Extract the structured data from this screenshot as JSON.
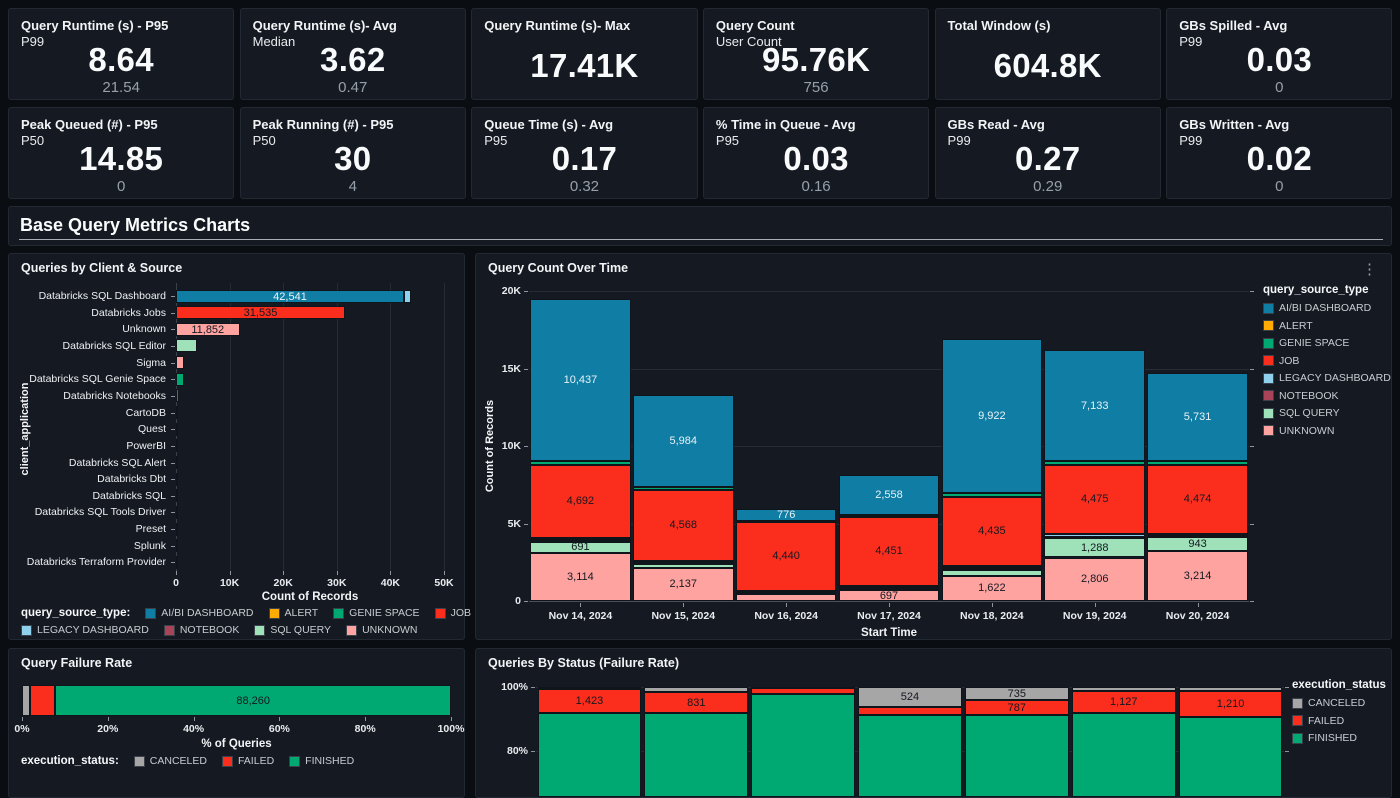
{
  "colors": {
    "background": "#0a0d12",
    "panel": "#151a22",
    "series": {
      "AI/BI DASHBOARD": "#0f7da4",
      "ALERT": "#ffab00",
      "GENIE SPACE": "#00a972",
      "JOB": "#fb2e1d",
      "LEGACY DASHBOARD": "#8fd0ec",
      "NOTEBOOK": "#a94458",
      "SQL QUERY": "#9fe2b9",
      "UNKNOWN": "#ffa3a1"
    },
    "status": {
      "CANCELED": "#a6a6a6",
      "FAILED": "#fb2e1d",
      "FINISHED": "#00a972"
    }
  },
  "kpi_cards": [
    {
      "title": "Query Runtime (s) - P95",
      "subtitle": "P99",
      "value": "8.64",
      "secondary": "21.54"
    },
    {
      "title": "Query Runtime (s)- Avg",
      "subtitle": "Median",
      "value": "3.62",
      "secondary": "0.47"
    },
    {
      "title": "Query Runtime (s)- Max",
      "subtitle": "",
      "value": "17.41K",
      "secondary": ""
    },
    {
      "title": "Query Count",
      "subtitle": "User Count",
      "value": "95.76K",
      "secondary": "756"
    },
    {
      "title": "Total Window (s)",
      "subtitle": "",
      "value": "604.8K",
      "secondary": ""
    },
    {
      "title": "GBs Spilled - Avg",
      "subtitle": "P99",
      "value": "0.03",
      "secondary": "0"
    },
    {
      "title": "Peak Queued (#) - P95",
      "subtitle": "P50",
      "value": "14.85",
      "secondary": "0"
    },
    {
      "title": "Peak Running (#) - P95",
      "subtitle": "P50",
      "value": "30",
      "secondary": "4"
    },
    {
      "title": "Queue Time (s) - Avg",
      "subtitle": "P95",
      "value": "0.17",
      "secondary": "0.32"
    },
    {
      "title": "% Time in Queue - Avg",
      "subtitle": "P95",
      "value": "0.03",
      "secondary": "0.16"
    },
    {
      "title": "GBs Read - Avg",
      "subtitle": "P99",
      "value": "0.27",
      "secondary": "0.29"
    },
    {
      "title": "GBs Written - Avg",
      "subtitle": "P99",
      "value": "0.02",
      "secondary": "0"
    }
  ],
  "section_title": "Base Query Metrics Charts",
  "chart_data": [
    {
      "id": "queries_by_client_source",
      "type": "bar",
      "orientation": "horizontal",
      "title": "Queries by Client & Source",
      "xlabel": "Count of Records",
      "ylabel": "client_application",
      "xlim": [
        0,
        50000
      ],
      "xticks": [
        "0",
        "10K",
        "20K",
        "30K",
        "40K",
        "50K"
      ],
      "grid": true,
      "categories": [
        "Databricks SQL Dashboard",
        "Databricks Jobs",
        "Unknown",
        "Databricks SQL Editor",
        "Sigma",
        "Databricks SQL Genie Space",
        "Databricks Notebooks",
        "CartoDB",
        "Quest",
        "PowerBI",
        "Databricks SQL Alert",
        "Databricks Dbt",
        "Databricks SQL",
        "Databricks SQL Tools Driver",
        "Preset",
        "Splunk",
        "Databricks Terraform Provider"
      ],
      "values": [
        42541,
        31535,
        11852,
        3900,
        1500,
        1450,
        560,
        370,
        90,
        70,
        60,
        50,
        40,
        30,
        25,
        20,
        15
      ],
      "value_labels": [
        "42,541",
        "31,535",
        "11,852",
        "",
        "",
        "",
        "",
        "",
        "",
        "",
        "",
        "",
        "",
        "",
        "",
        "",
        ""
      ],
      "bar_series": [
        "AI/BI DASHBOARD",
        "JOB",
        "UNKNOWN",
        "SQL QUERY",
        "UNKNOWN",
        "GENIE SPACE",
        "NOTEBOOK",
        "UNKNOWN",
        "UNKNOWN",
        "UNKNOWN",
        "ALERT",
        "JOB",
        "JOB",
        "UNKNOWN",
        "UNKNOWN",
        "UNKNOWN",
        "JOB"
      ],
      "extra_segment": {
        "category_index": 0,
        "series": "LEGACY DASHBOARD",
        "value": 1300
      },
      "legend_title": "query_source_type:",
      "legend_rows": [
        [
          "AI/BI DASHBOARD",
          "ALERT",
          "GENIE SPACE",
          "JOB"
        ],
        [
          "LEGACY DASHBOARD",
          "NOTEBOOK",
          "SQL QUERY",
          "UNKNOWN"
        ]
      ],
      "legend_position": "bottom"
    },
    {
      "id": "query_count_over_time",
      "type": "stacked-bar",
      "title": "Query Count Over Time",
      "xlabel": "Start Time",
      "ylabel": "Count of Records",
      "ylim": [
        0,
        20000
      ],
      "yticks": [
        "0",
        "5K",
        "10K",
        "15K",
        "20K"
      ],
      "grid": true,
      "categories": [
        "Nov 14, 2024",
        "Nov 15, 2024",
        "Nov 16, 2024",
        "Nov 17, 2024",
        "Nov 18, 2024",
        "Nov 19, 2024",
        "Nov 20, 2024"
      ],
      "stack_order_bottom_to_top": [
        "UNKNOWN",
        "SQL QUERY",
        "NOTEBOOK",
        "LEGACY DASHBOARD",
        "JOB",
        "GENIE SPACE",
        "ALERT",
        "AI/BI DASHBOARD"
      ],
      "series": [
        {
          "name": "AI/BI DASHBOARD",
          "values": [
            10437,
            5984,
            776,
            2558,
            9922,
            7133,
            5731
          ]
        },
        {
          "name": "ALERT",
          "values": [
            0,
            0,
            0,
            0,
            0,
            0,
            0
          ]
        },
        {
          "name": "GENIE SPACE",
          "values": [
            290,
            160,
            60,
            120,
            280,
            240,
            220
          ]
        },
        {
          "name": "JOB",
          "values": [
            4692,
            4568,
            4440,
            4451,
            4435,
            4475,
            4474
          ]
        },
        {
          "name": "LEGACY DASHBOARD",
          "values": [
            160,
            120,
            40,
            150,
            180,
            170,
            60
          ]
        },
        {
          "name": "NOTEBOOK",
          "values": [
            110,
            40,
            20,
            30,
            100,
            60,
            90
          ]
        },
        {
          "name": "SQL QUERY",
          "values": [
            691,
            280,
            90,
            60,
            380,
            1288,
            943
          ]
        },
        {
          "name": "UNKNOWN",
          "values": [
            3114,
            2137,
            450,
            697,
            1622,
            2806,
            3214
          ]
        }
      ],
      "label_min_value": 600,
      "legend_title": "query_source_type",
      "legend_items": [
        "AI/BI DASHBOARD",
        "ALERT",
        "GENIE SPACE",
        "JOB",
        "LEGACY DASHBOARD",
        "NOTEBOOK",
        "SQL QUERY",
        "UNKNOWN"
      ],
      "legend_position": "right",
      "has_menu": true
    },
    {
      "id": "query_failure_rate",
      "type": "stacked-bar-horizontal-percent",
      "title": "Query Failure Rate",
      "xlabel": "% of Queries",
      "xlim": [
        0,
        100
      ],
      "xticks": [
        "0%",
        "20%",
        "40%",
        "60%",
        "80%",
        "100%"
      ],
      "segments": [
        {
          "name": "CANCELED",
          "percent": 1.8,
          "label": ""
        },
        {
          "name": "FAILED",
          "percent": 6.0,
          "label": ""
        },
        {
          "name": "FINISHED",
          "percent": 92.2,
          "label": "88,260"
        }
      ],
      "legend_title": "execution_status:",
      "legend_items": [
        "CANCELED",
        "FAILED",
        "FINISHED"
      ],
      "legend_position": "bottom"
    },
    {
      "id": "queries_by_status_failure_rate",
      "type": "stacked-bar-percent",
      "title": "Queries By Status (Failure Rate)",
      "yticks_visible": [
        "100%",
        "80%"
      ],
      "bars": [
        {
          "canceled_pct": 0.7,
          "failed_pct": 7.3,
          "canceled_label": "",
          "failed_label": "1,423"
        },
        {
          "canceled_pct": 1.7,
          "failed_pct": 6.3,
          "canceled_label": "",
          "failed_label": "831"
        },
        {
          "canceled_pct": 0.4,
          "failed_pct": 1.9,
          "canceled_label": "",
          "failed_label": ""
        },
        {
          "canceled_pct": 6.4,
          "failed_pct": 2.4,
          "canceled_label": "524",
          "failed_label": ""
        },
        {
          "canceled_pct": 4.2,
          "failed_pct": 4.6,
          "canceled_label": "735",
          "failed_label": "787"
        },
        {
          "canceled_pct": 1.1,
          "failed_pct": 7.0,
          "canceled_label": "",
          "failed_label": "1,127"
        },
        {
          "canceled_pct": 1.3,
          "failed_pct": 8.1,
          "canceled_label": "",
          "failed_label": "1,210"
        }
      ],
      "legend_title": "execution_status",
      "legend_items": [
        "CANCELED",
        "FAILED",
        "FINISHED"
      ],
      "legend_position": "right"
    }
  ]
}
